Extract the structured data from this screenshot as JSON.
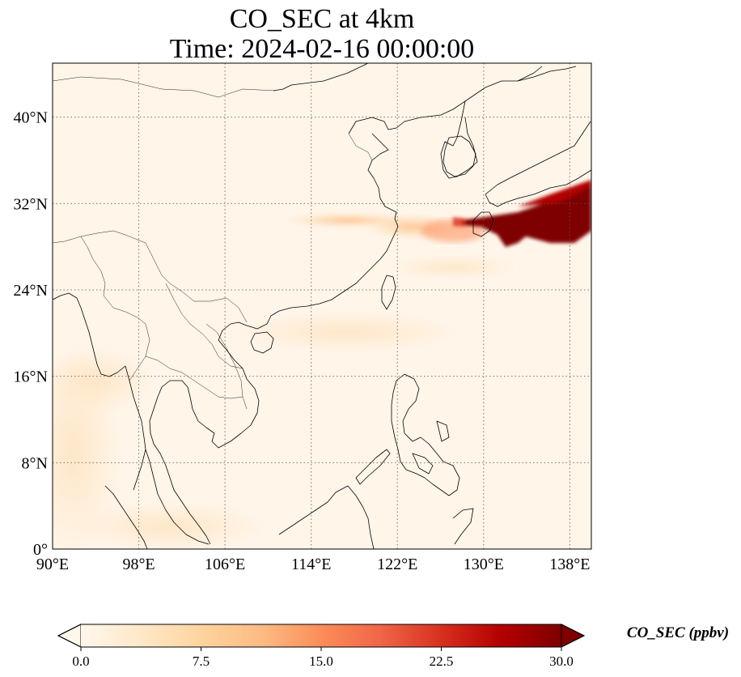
{
  "title": {
    "line1": "CO_SEC at 4km",
    "line2": "Time: 2024-02-16 00:00:00"
  },
  "map": {
    "lon_range": [
      90,
      140
    ],
    "lat_range": [
      0,
      45
    ],
    "lon_ticks": [
      {
        "value": 90,
        "label": "90°E"
      },
      {
        "value": 98,
        "label": "98°E"
      },
      {
        "value": 106,
        "label": "106°E"
      },
      {
        "value": 114,
        "label": "114°E"
      },
      {
        "value": 122,
        "label": "122°E"
      },
      {
        "value": 130,
        "label": "130°E"
      },
      {
        "value": 138,
        "label": "138°E"
      }
    ],
    "lat_ticks": [
      {
        "value": 0,
        "label": "0°"
      },
      {
        "value": 8,
        "label": "8°N"
      },
      {
        "value": 16,
        "label": "16°N"
      },
      {
        "value": 24,
        "label": "24°N"
      },
      {
        "value": 32,
        "label": "32°N"
      },
      {
        "value": 40,
        "label": "40°N"
      }
    ],
    "gridlines": true,
    "colormap": "OrRd",
    "background_color": "#fff5e9",
    "plume_color": "#7f0000"
  },
  "colorbar": {
    "label": "CO_SEC (ppbv)",
    "min": 0.0,
    "max": 30.0,
    "extend": "both",
    "ticks": [
      {
        "value": 0.0,
        "label": "0.0"
      },
      {
        "value": 7.5,
        "label": "7.5"
      },
      {
        "value": 15.0,
        "label": "15.0"
      },
      {
        "value": 22.5,
        "label": "22.5"
      },
      {
        "value": 30.0,
        "label": "30.0"
      }
    ],
    "stops": [
      "#fff7ec",
      "#fee8c8",
      "#fdd49e",
      "#fdbb84",
      "#fc8d59",
      "#ef6548",
      "#d7301f",
      "#b30000",
      "#7f0000"
    ]
  }
}
